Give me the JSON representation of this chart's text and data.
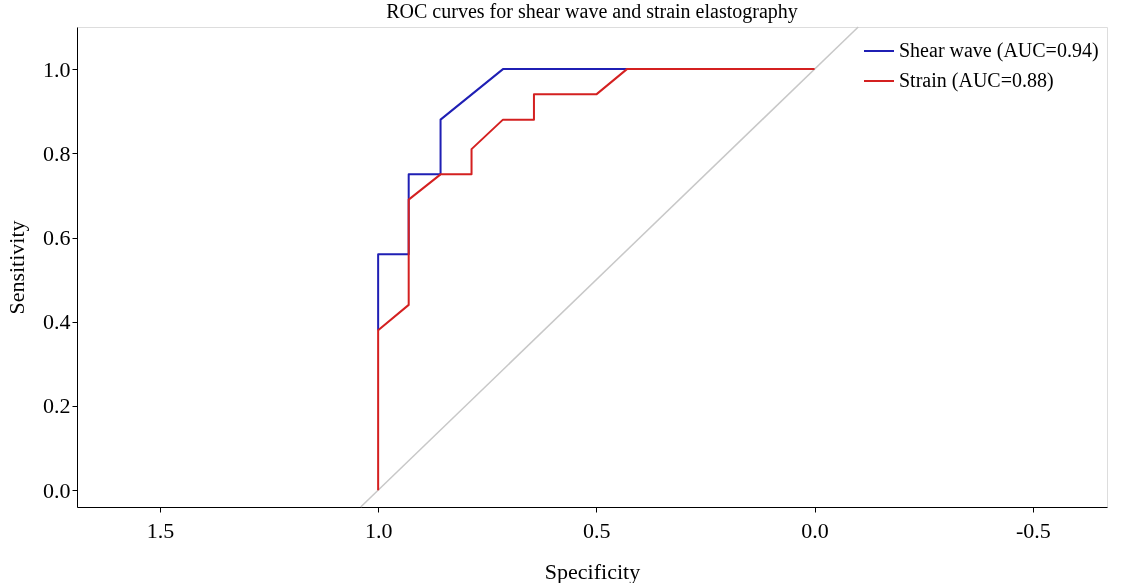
{
  "chart_data": {
    "type": "line",
    "title": "ROC curves for shear wave and strain elastography",
    "xlabel": "Specificity",
    "ylabel": "Sensitivity",
    "xlim": [
      1.69,
      -0.67
    ],
    "ylim": [
      -0.04,
      1.1
    ],
    "xticks": [
      1.5,
      {
        "value": 1.0,
        "label": "1.0"
      },
      0.5,
      {
        "value": 0.0,
        "label": "0.0"
      },
      -0.5
    ],
    "yticks": [
      {
        "value": 0.0,
        "label": "0.0"
      },
      0.2,
      0.4,
      0.6,
      0.8,
      {
        "value": 1.0,
        "label": "1.0"
      }
    ],
    "grid": false,
    "legend": "top right",
    "marker": "none",
    "line_style": "solid",
    "series": [
      {
        "color": "#c8c8c8",
        "x": [
          1.04,
          -0.1
        ],
        "values": [
          -0.04,
          1.1
        ]
      },
      {
        "name": "Shear wave (AUC=0.94)",
        "color": "#1f1fb4",
        "x": [
          1.0,
          1.0,
          0.93,
          0.93,
          0.857,
          0.857,
          0.714,
          0.43
        ],
        "values": [
          0.38,
          0.56,
          0.56,
          0.75,
          0.75,
          0.88,
          1.0,
          1.0
        ]
      },
      {
        "name": "Strain (AUC=0.88)",
        "color": "#d42020",
        "x": [
          1.0,
          1.0,
          0.93,
          0.93,
          0.857,
          0.786,
          0.786,
          0.714,
          0.643,
          0.643,
          0.5,
          0.43,
          0.0
        ],
        "values": [
          0.0,
          0.38,
          0.44,
          0.69,
          0.75,
          0.75,
          0.81,
          0.88,
          0.88,
          0.94,
          0.94,
          1.0,
          1.0
        ]
      }
    ]
  }
}
